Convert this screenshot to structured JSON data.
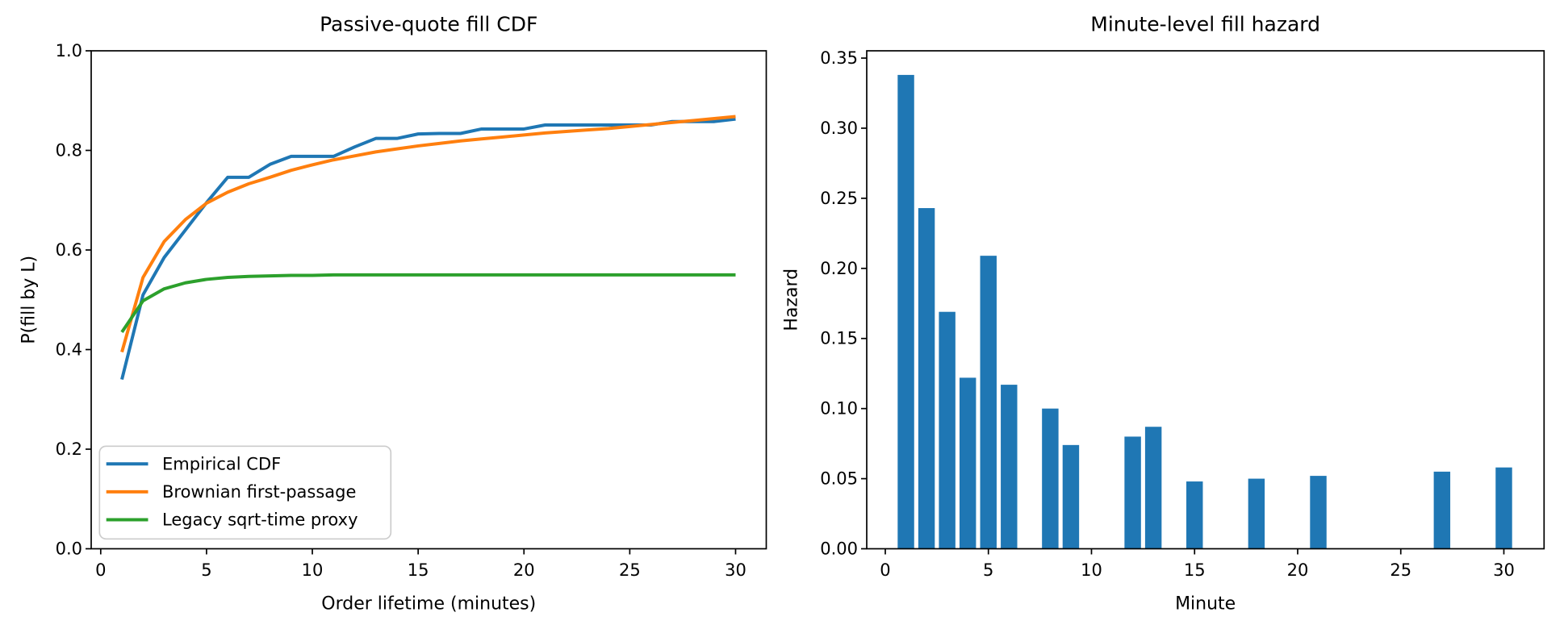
{
  "figure": {
    "background": "#ffffff",
    "text_color": "#000000",
    "spine_color": "#000000"
  },
  "chart_data": [
    {
      "type": "line",
      "title": "Passive-quote fill CDF",
      "xlabel": "Order lifetime (minutes)",
      "ylabel": "P(fill by L)",
      "xlim": [
        -0.45,
        31.45
      ],
      "ylim": [
        0.0,
        1.0
      ],
      "xticks": [
        0,
        5,
        10,
        15,
        20,
        25,
        30
      ],
      "xtick_labels": [
        "0",
        "5",
        "10",
        "15",
        "20",
        "25",
        "30"
      ],
      "yticks": [
        0.0,
        0.2,
        0.4,
        0.6,
        0.8,
        1.0
      ],
      "ytick_labels": [
        "0.0",
        "0.2",
        "0.4",
        "0.6",
        "0.8",
        "1.0"
      ],
      "grid": false,
      "legend_position": "lower left",
      "x": [
        1,
        2,
        3,
        4,
        5,
        6,
        7,
        8,
        9,
        10,
        11,
        12,
        13,
        14,
        15,
        16,
        17,
        18,
        19,
        20,
        21,
        22,
        23,
        24,
        25,
        26,
        27,
        28,
        29,
        30
      ],
      "series": [
        {
          "name": "Empirical CDF",
          "color": "#1f77b4",
          "values": [
            0.34,
            0.51,
            0.585,
            0.64,
            0.695,
            0.746,
            0.746,
            0.772,
            0.788,
            0.788,
            0.788,
            0.807,
            0.824,
            0.824,
            0.833,
            0.834,
            0.834,
            0.843,
            0.843,
            0.843,
            0.851,
            0.851,
            0.851,
            0.851,
            0.851,
            0.851,
            0.858,
            0.858,
            0.858,
            0.863
          ]
        },
        {
          "name": "Brownian first-passage",
          "color": "#ff7f0e",
          "values": [
            0.395,
            0.545,
            0.617,
            0.661,
            0.694,
            0.716,
            0.733,
            0.746,
            0.76,
            0.771,
            0.781,
            0.789,
            0.797,
            0.803,
            0.809,
            0.814,
            0.819,
            0.823,
            0.827,
            0.831,
            0.835,
            0.838,
            0.841,
            0.844,
            0.848,
            0.852,
            0.856,
            0.86,
            0.864,
            0.868
          ]
        },
        {
          "name": "Legacy sqrt-time proxy",
          "color": "#2ca02c",
          "values": [
            0.435,
            0.498,
            0.522,
            0.534,
            0.541,
            0.545,
            0.547,
            0.548,
            0.549,
            0.549,
            0.55,
            0.55,
            0.55,
            0.55,
            0.55,
            0.55,
            0.55,
            0.55,
            0.55,
            0.55,
            0.55,
            0.55,
            0.55,
            0.55,
            0.55,
            0.55,
            0.55,
            0.55,
            0.55,
            0.55
          ]
        }
      ]
    },
    {
      "type": "bar",
      "title": "Minute-level fill hazard",
      "xlabel": "Minute",
      "ylabel": "Hazard",
      "xlim": [
        -0.9,
        31.95
      ],
      "ylim": [
        0.0,
        0.3552
      ],
      "xticks": [
        0,
        5,
        10,
        15,
        20,
        25,
        30
      ],
      "xtick_labels": [
        "0",
        "5",
        "10",
        "15",
        "20",
        "25",
        "30"
      ],
      "yticks": [
        0.0,
        0.05,
        0.1,
        0.15,
        0.2,
        0.25,
        0.3,
        0.35
      ],
      "ytick_labels": [
        "0.00",
        "0.05",
        "0.10",
        "0.15",
        "0.20",
        "0.25",
        "0.30",
        "0.35"
      ],
      "grid": false,
      "bar_color": "#1f77b4",
      "bar_width": 0.8,
      "x": [
        1,
        2,
        3,
        4,
        5,
        6,
        8,
        9,
        12,
        13,
        15,
        18,
        21,
        27,
        30
      ],
      "values": [
        0.338,
        0.243,
        0.169,
        0.122,
        0.209,
        0.117,
        0.1,
        0.074,
        0.08,
        0.087,
        0.048,
        0.05,
        0.052,
        0.055,
        0.058
      ]
    }
  ]
}
